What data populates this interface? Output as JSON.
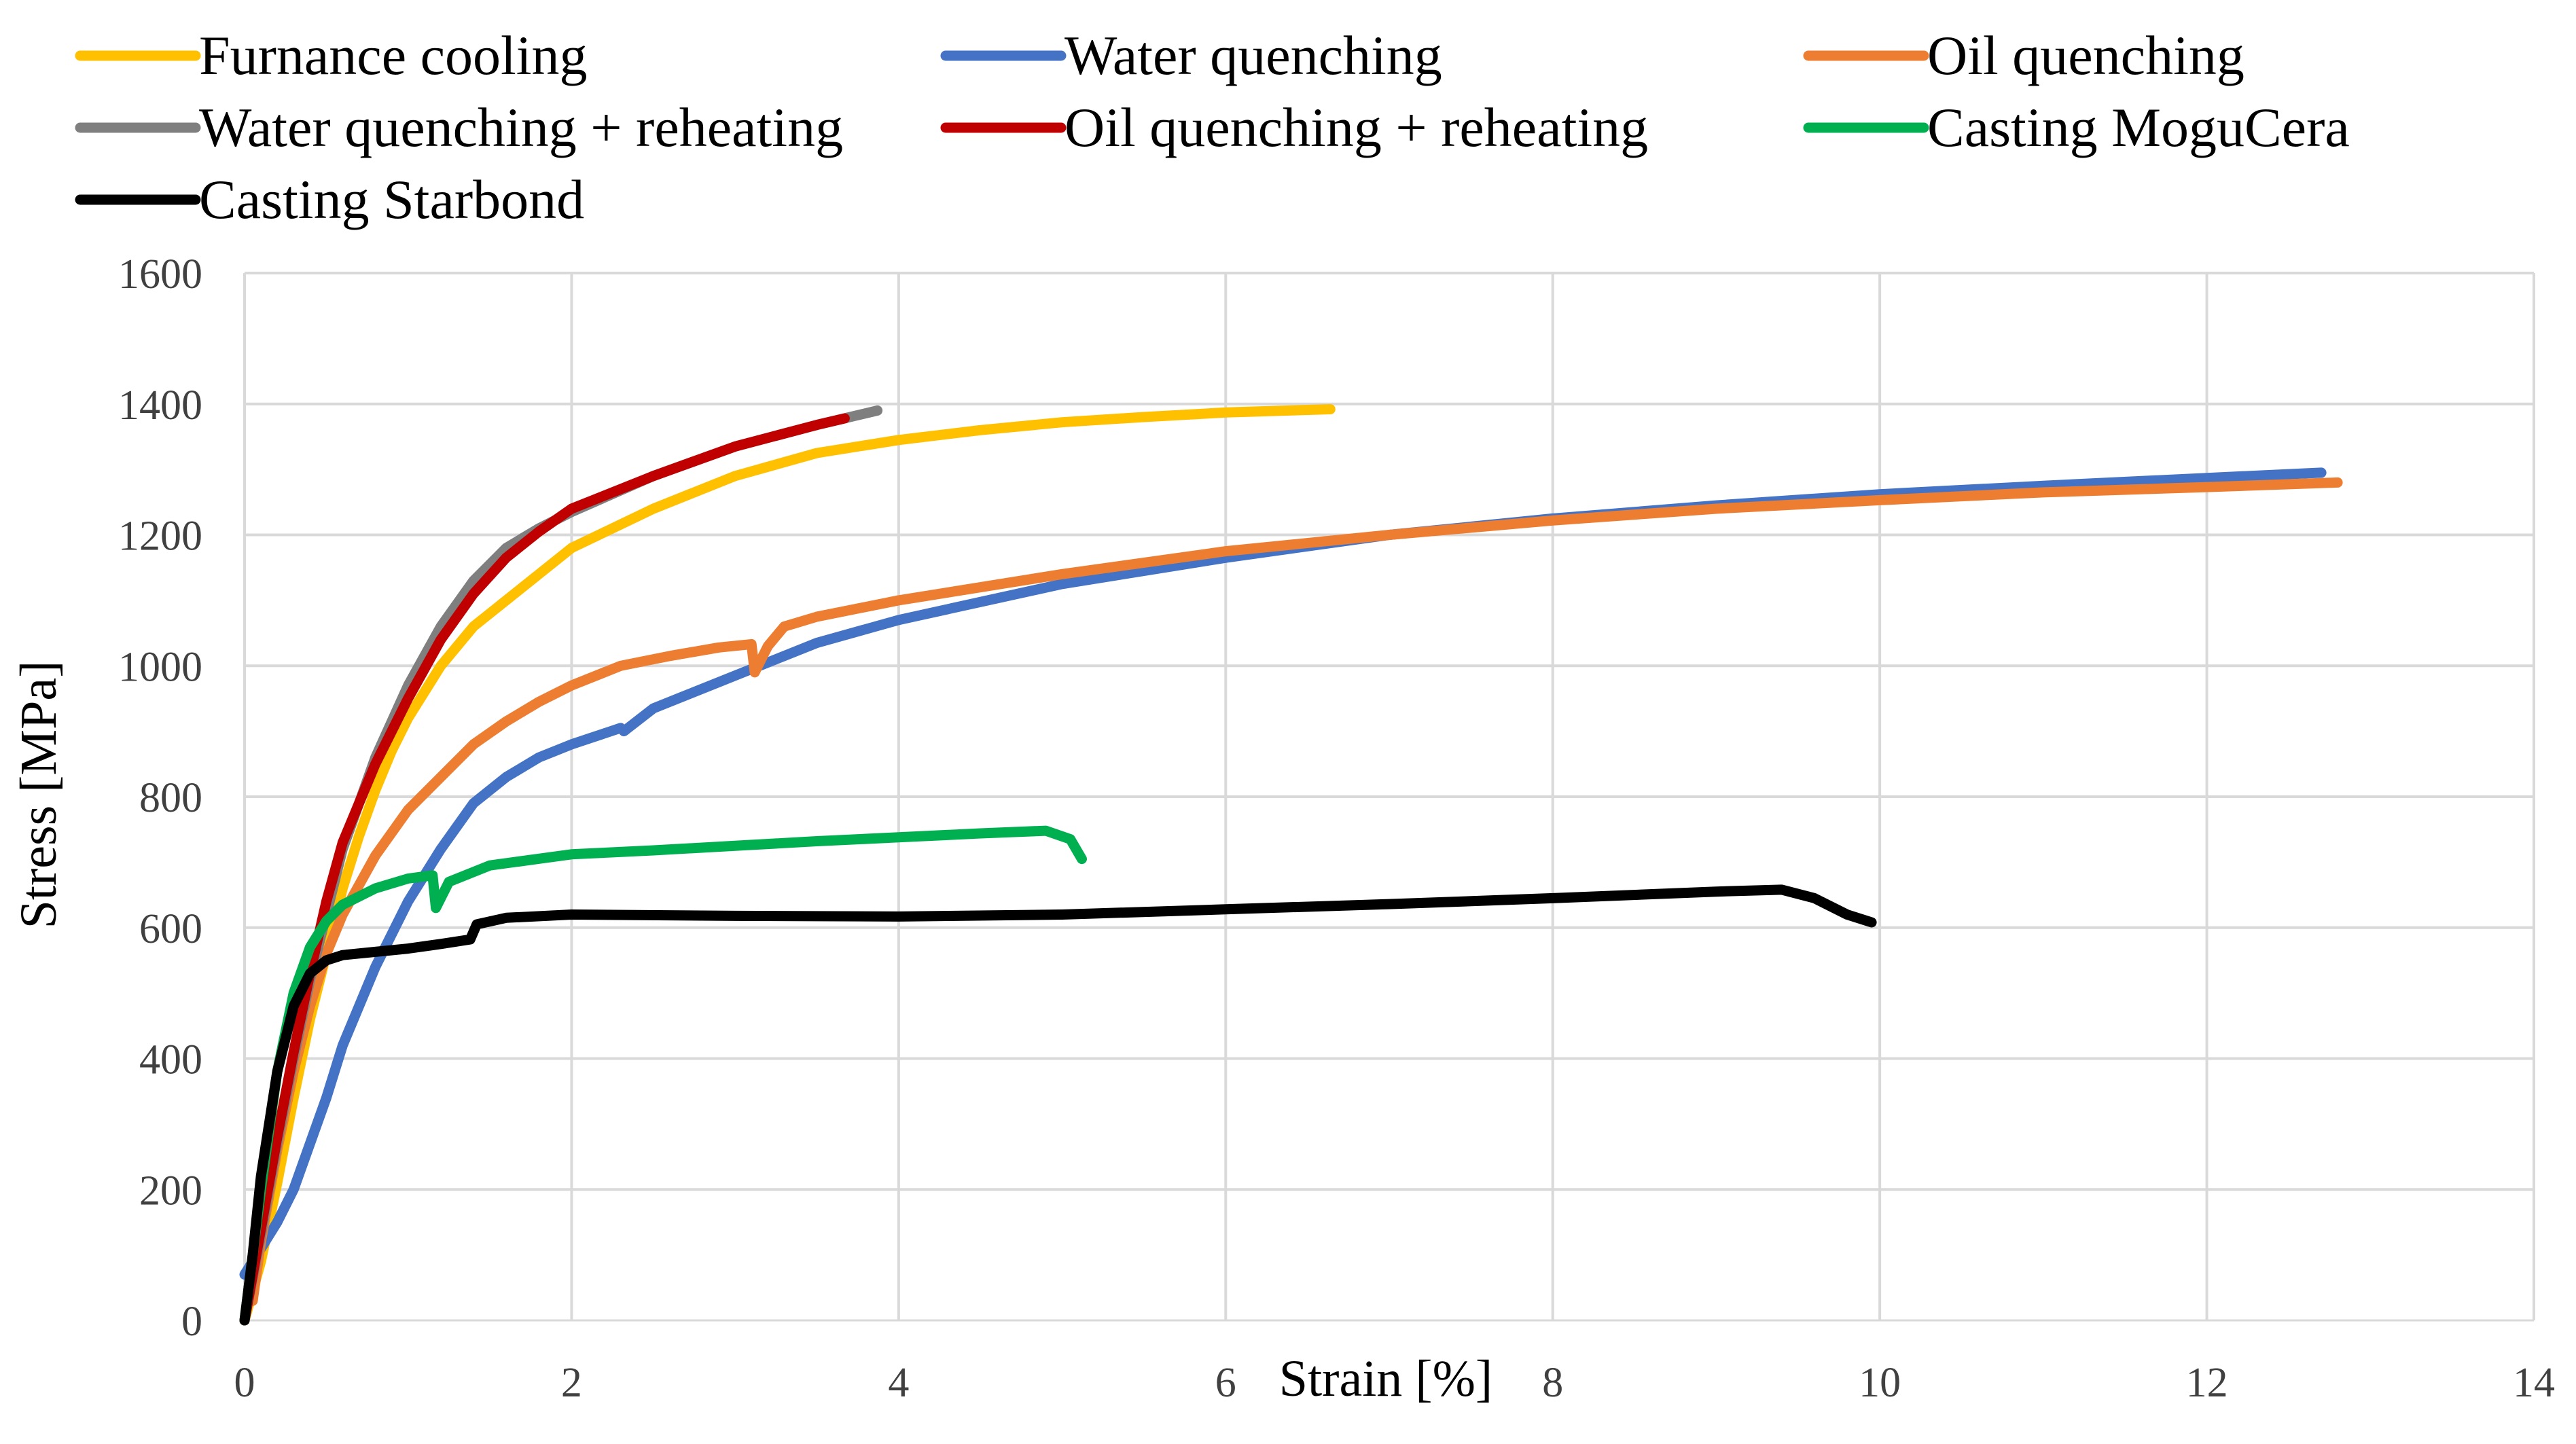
{
  "chart_data": {
    "type": "line",
    "title": "",
    "xlabel": "Strain [%]",
    "ylabel": "Stress [MPa]",
    "xlim": [
      0,
      14
    ],
    "ylim": [
      0,
      1600
    ],
    "xticks": [
      0,
      2,
      4,
      6,
      8,
      10,
      12,
      14
    ],
    "yticks": [
      0,
      200,
      400,
      600,
      800,
      1000,
      1200,
      1400,
      1600
    ],
    "grid": true,
    "legend_placement": "top",
    "series": [
      {
        "name": "Furnance cooling",
        "color": "#FFC000",
        "points": [
          [
            0,
            0
          ],
          [
            0.1,
            90
          ],
          [
            0.2,
            210
          ],
          [
            0.3,
            340
          ],
          [
            0.4,
            460
          ],
          [
            0.5,
            560
          ],
          [
            0.6,
            660
          ],
          [
            0.7,
            740
          ],
          [
            0.8,
            810
          ],
          [
            0.9,
            870
          ],
          [
            1.0,
            920
          ],
          [
            1.2,
            1000
          ],
          [
            1.4,
            1060
          ],
          [
            1.6,
            1100
          ],
          [
            1.8,
            1140
          ],
          [
            2.0,
            1180
          ],
          [
            2.5,
            1240
          ],
          [
            3.0,
            1290
          ],
          [
            3.5,
            1325
          ],
          [
            4.0,
            1345
          ],
          [
            4.5,
            1360
          ],
          [
            5.0,
            1372
          ],
          [
            5.5,
            1380
          ],
          [
            6.0,
            1387
          ],
          [
            6.64,
            1392
          ]
        ]
      },
      {
        "name": "Water quenching",
        "color": "#4472C4",
        "points": [
          [
            0,
            70
          ],
          [
            0.1,
            110
          ],
          [
            0.2,
            150
          ],
          [
            0.3,
            200
          ],
          [
            0.4,
            270
          ],
          [
            0.5,
            340
          ],
          [
            0.6,
            420
          ],
          [
            0.8,
            540
          ],
          [
            1.0,
            640
          ],
          [
            1.2,
            720
          ],
          [
            1.4,
            790
          ],
          [
            1.6,
            830
          ],
          [
            1.8,
            860
          ],
          [
            2.0,
            880
          ],
          [
            2.3,
            905
          ],
          [
            2.32,
            900
          ],
          [
            2.5,
            935
          ],
          [
            3.0,
            985
          ],
          [
            3.5,
            1035
          ],
          [
            4.0,
            1070
          ],
          [
            5.0,
            1125
          ],
          [
            6.0,
            1165
          ],
          [
            7.0,
            1200
          ],
          [
            8.0,
            1225
          ],
          [
            9.0,
            1245
          ],
          [
            10.0,
            1262
          ],
          [
            11.0,
            1275
          ],
          [
            12.0,
            1287
          ],
          [
            12.7,
            1295
          ]
        ]
      },
      {
        "name": "Oil quenching",
        "color": "#ED7D31",
        "points": [
          [
            0.05,
            30
          ],
          [
            0.1,
            120
          ],
          [
            0.2,
            260
          ],
          [
            0.3,
            380
          ],
          [
            0.4,
            480
          ],
          [
            0.5,
            560
          ],
          [
            0.6,
            620
          ],
          [
            0.8,
            710
          ],
          [
            1.0,
            780
          ],
          [
            1.2,
            830
          ],
          [
            1.4,
            880
          ],
          [
            1.6,
            915
          ],
          [
            1.8,
            945
          ],
          [
            2.0,
            970
          ],
          [
            2.3,
            1000
          ],
          [
            2.6,
            1015
          ],
          [
            2.9,
            1028
          ],
          [
            3.1,
            1033
          ],
          [
            3.12,
            990
          ],
          [
            3.2,
            1030
          ],
          [
            3.3,
            1060
          ],
          [
            3.5,
            1075
          ],
          [
            4.0,
            1100
          ],
          [
            5.0,
            1140
          ],
          [
            6.0,
            1175
          ],
          [
            7.0,
            1200
          ],
          [
            8.0,
            1222
          ],
          [
            9.0,
            1240
          ],
          [
            10.0,
            1253
          ],
          [
            11.0,
            1265
          ],
          [
            12.0,
            1273
          ],
          [
            12.8,
            1280
          ]
        ]
      },
      {
        "name": "Water quenching + reheating",
        "color": "#7F7F7F",
        "points": [
          [
            0,
            0
          ],
          [
            0.1,
            130
          ],
          [
            0.2,
            270
          ],
          [
            0.3,
            400
          ],
          [
            0.4,
            520
          ],
          [
            0.5,
            620
          ],
          [
            0.6,
            720
          ],
          [
            0.8,
            860
          ],
          [
            1.0,
            970
          ],
          [
            1.2,
            1060
          ],
          [
            1.4,
            1130
          ],
          [
            1.6,
            1180
          ],
          [
            1.8,
            1210
          ],
          [
            2.0,
            1235
          ],
          [
            2.5,
            1290
          ],
          [
            3.0,
            1335
          ],
          [
            3.5,
            1368
          ],
          [
            3.87,
            1390
          ]
        ]
      },
      {
        "name": "Oil quenching + reheating",
        "color": "#C00000",
        "points": [
          [
            0,
            0
          ],
          [
            0.1,
            140
          ],
          [
            0.2,
            280
          ],
          [
            0.3,
            410
          ],
          [
            0.4,
            530
          ],
          [
            0.5,
            640
          ],
          [
            0.6,
            730
          ],
          [
            0.8,
            850
          ],
          [
            1.0,
            950
          ],
          [
            1.2,
            1040
          ],
          [
            1.4,
            1110
          ],
          [
            1.6,
            1165
          ],
          [
            1.8,
            1205
          ],
          [
            2.0,
            1240
          ],
          [
            2.5,
            1290
          ],
          [
            3.0,
            1335
          ],
          [
            3.5,
            1368
          ],
          [
            3.67,
            1378
          ]
        ]
      },
      {
        "name": "Casting MoguCera",
        "color": "#00B050",
        "points": [
          [
            0,
            0
          ],
          [
            0.1,
            200
          ],
          [
            0.2,
            380
          ],
          [
            0.3,
            500
          ],
          [
            0.4,
            570
          ],
          [
            0.5,
            610
          ],
          [
            0.6,
            635
          ],
          [
            0.8,
            660
          ],
          [
            1.0,
            675
          ],
          [
            1.15,
            680
          ],
          [
            1.17,
            630
          ],
          [
            1.25,
            670
          ],
          [
            1.5,
            695
          ],
          [
            2.0,
            712
          ],
          [
            2.5,
            718
          ],
          [
            3.0,
            725
          ],
          [
            3.5,
            732
          ],
          [
            4.0,
            738
          ],
          [
            4.5,
            744
          ],
          [
            4.9,
            748
          ],
          [
            5.05,
            735
          ],
          [
            5.12,
            705
          ]
        ]
      },
      {
        "name": "Casting Starbond",
        "color": "#000000",
        "points": [
          [
            0,
            0
          ],
          [
            0.05,
            100
          ],
          [
            0.1,
            220
          ],
          [
            0.2,
            380
          ],
          [
            0.3,
            480
          ],
          [
            0.4,
            530
          ],
          [
            0.5,
            550
          ],
          [
            0.6,
            558
          ],
          [
            0.8,
            563
          ],
          [
            1.0,
            568
          ],
          [
            1.2,
            575
          ],
          [
            1.38,
            582
          ],
          [
            1.42,
            605
          ],
          [
            1.6,
            615
          ],
          [
            2.0,
            620
          ],
          [
            3.0,
            618
          ],
          [
            4.0,
            617
          ],
          [
            5.0,
            620
          ],
          [
            6.0,
            628
          ],
          [
            7.0,
            636
          ],
          [
            8.0,
            645
          ],
          [
            9.0,
            655
          ],
          [
            9.4,
            658
          ],
          [
            9.6,
            645
          ],
          [
            9.8,
            620
          ],
          [
            9.95,
            608
          ]
        ]
      }
    ]
  }
}
